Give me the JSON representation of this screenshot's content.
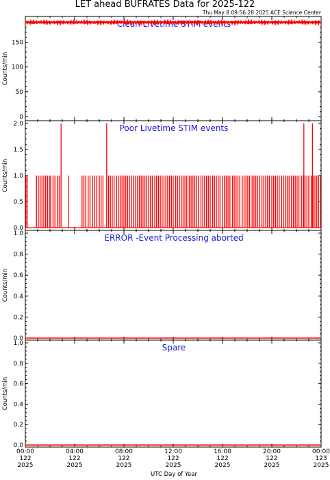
{
  "header": {
    "title": "LET ahead BUFRATES Data for 2025-122",
    "timestamp": "Thu May  8 09:56:28 2025 ACE Science Center"
  },
  "colors": {
    "data": "#ff0000",
    "panel_title": "#1a1ad8",
    "axes": "#000000"
  },
  "x_axis": {
    "label": "UTC Day of Year",
    "ticks": [
      {
        "time": "00:00",
        "doy": "122",
        "year": "2025"
      },
      {
        "time": "04:00",
        "doy": "122",
        "year": "2025"
      },
      {
        "time": "08:00",
        "doy": "122",
        "year": "2025"
      },
      {
        "time": "12:00",
        "doy": "122",
        "year": "2025"
      },
      {
        "time": "16:00",
        "doy": "122",
        "year": "2025"
      },
      {
        "time": "20:00",
        "doy": "122",
        "year": "2025"
      },
      {
        "time": "00:00",
        "doy": "123",
        "year": "2025"
      }
    ]
  },
  "chart_data": [
    {
      "type": "line",
      "title": "Clean Livetime STIM events",
      "ylabel": "Counts/min",
      "ylim": [
        0,
        195
      ],
      "yticks": [
        "0",
        "50",
        "100",
        "150"
      ],
      "xlim_hours": [
        0,
        24
      ],
      "series": [
        {
          "values_summary": "roughly constant near 190 counts/min all day",
          "x": [
            0,
            24
          ],
          "y": [
            190,
            190
          ]
        }
      ]
    },
    {
      "type": "line",
      "title": "Poor Livetime STIM events",
      "ylabel": "Counts/min",
      "ylim": [
        0,
        2
      ],
      "yticks": [
        "0.0",
        "0.5",
        "1.0",
        "1.5",
        "2.0"
      ],
      "xlim_hours": [
        0,
        24
      ],
      "series": [
        {
          "baseline": 0,
          "spikes_hours_value1": [
            0.05,
            0.15,
            0.9,
            1.05,
            1.2,
            1.35,
            1.5,
            1.65,
            1.8,
            1.95,
            2.05,
            2.25,
            2.4,
            2.6,
            2.75,
            3.5,
            4.6,
            4.75,
            4.9,
            5.1,
            5.25,
            5.45,
            5.6,
            5.8,
            6.0,
            6.15,
            6.3,
            6.75,
            6.9,
            7.05,
            7.2,
            7.4,
            7.55,
            7.7,
            7.85,
            8.0,
            8.15,
            8.3,
            8.45,
            8.6,
            8.8,
            8.95,
            9.1,
            9.25,
            9.4,
            9.55,
            9.7,
            9.85,
            10.0,
            10.15,
            10.3,
            10.5,
            10.65,
            10.8,
            10.95,
            11.1,
            11.25,
            11.4,
            11.55,
            11.7,
            11.85,
            12.0,
            12.2,
            12.35,
            12.5,
            12.65,
            12.8,
            12.95,
            13.1,
            13.3,
            13.45,
            13.6,
            13.75,
            13.9,
            14.05,
            14.25,
            14.4,
            14.55,
            14.7,
            14.85,
            15.0,
            15.2,
            15.35,
            15.5,
            15.65,
            15.8,
            16.0,
            16.15,
            16.3,
            16.45,
            16.6,
            16.8,
            16.95,
            17.1,
            17.25,
            17.4,
            17.6,
            17.75,
            17.9,
            18.05,
            18.2,
            18.4,
            18.55,
            18.7,
            18.85,
            19.0,
            19.2,
            19.35,
            19.5,
            19.65,
            19.8,
            20.0,
            20.15,
            20.3,
            20.45,
            20.6,
            20.8,
            20.95,
            21.1,
            21.25,
            21.4,
            21.6,
            21.75,
            21.9,
            22.05,
            22.2,
            22.4,
            22.55,
            22.7,
            22.85,
            23.0,
            23.2,
            23.35,
            23.5,
            23.65,
            23.8,
            23.95
          ],
          "spikes_hours_value2": [
            2.9,
            6.6,
            22.6,
            23.3
          ]
        }
      ]
    },
    {
      "type": "line",
      "title": "ERROR -Event Processing aborted",
      "ylabel": "Counts/min",
      "ylim": [
        0,
        1
      ],
      "yticks": [
        "0.0",
        "0.2",
        "0.4",
        "0.6",
        "0.8",
        "1.0"
      ],
      "xlim_hours": [
        0,
        24
      ],
      "series": [
        {
          "x": [
            0,
            24
          ],
          "y": [
            0,
            0
          ]
        }
      ]
    },
    {
      "type": "line",
      "title": "Spare",
      "ylabel": "Counts/min",
      "ylim": [
        0,
        1
      ],
      "yticks": [
        "0.0",
        "0.2",
        "0.4",
        "0.6",
        "0.8",
        "1.0"
      ],
      "xlim_hours": [
        0,
        24
      ],
      "series": [
        {
          "x": [
            0,
            24
          ],
          "y": [
            0,
            0
          ]
        }
      ]
    }
  ]
}
